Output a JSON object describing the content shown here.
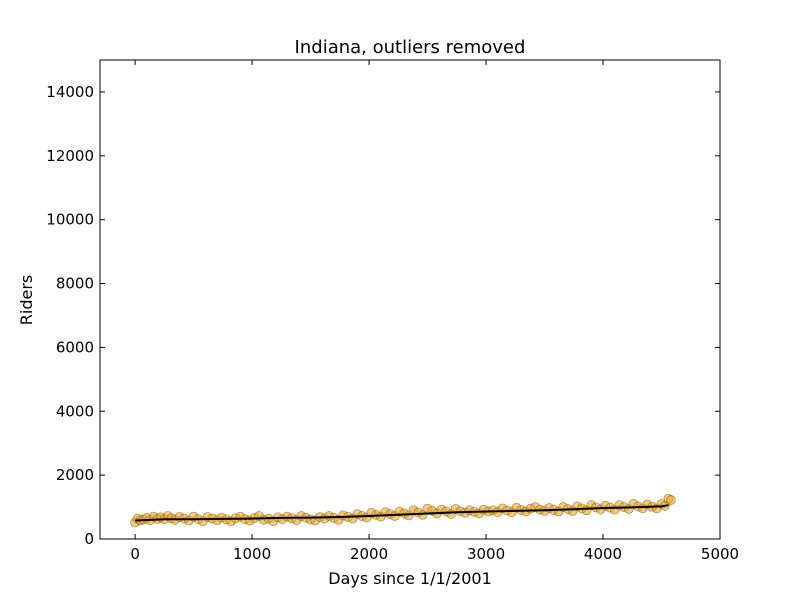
{
  "chart_data": {
    "type": "scatter",
    "title": "Indiana, outliers removed",
    "xlabel": "Days since 1/1/2001",
    "ylabel": "Riders",
    "xlim": [
      -300,
      5000
    ],
    "ylim": [
      0,
      15000
    ],
    "xticks": [
      0,
      1000,
      2000,
      3000,
      4000,
      5000
    ],
    "yticks": [
      0,
      2000,
      4000,
      6000,
      8000,
      10000,
      12000,
      14000
    ],
    "xtick_labels": [
      "0",
      "1000",
      "2000",
      "3000",
      "4000",
      "5000"
    ],
    "ytick_labels": [
      "0",
      "2000",
      "4000",
      "6000",
      "8000",
      "10000",
      "12000",
      "14000"
    ],
    "grid": false,
    "colors": {
      "points_fill": "#e8a020",
      "points_edge": "#8a5a00",
      "trend": "#000000"
    },
    "series": [
      {
        "kind": "points",
        "x": [
          0,
          20,
          45,
          70,
          100,
          130,
          160,
          190,
          220,
          250,
          280,
          310,
          340,
          380,
          420,
          460,
          500,
          540,
          580,
          620,
          660,
          700,
          740,
          780,
          820,
          860,
          900,
          940,
          980,
          1020,
          1060,
          1100,
          1140,
          1180,
          1220,
          1260,
          1300,
          1340,
          1380,
          1420,
          1460,
          1500,
          1540,
          1580,
          1620,
          1660,
          1700,
          1740,
          1780,
          1820,
          1860,
          1900,
          1940,
          1980,
          2020,
          2060,
          2100,
          2140,
          2180,
          2220,
          2260,
          2300,
          2340,
          2380,
          2420,
          2460,
          2500,
          2540,
          2580,
          2620,
          2660,
          2700,
          2740,
          2780,
          2820,
          2860,
          2900,
          2940,
          2980,
          3020,
          3060,
          3100,
          3140,
          3180,
          3220,
          3260,
          3300,
          3340,
          3380,
          3420,
          3460,
          3500,
          3540,
          3580,
          3620,
          3660,
          3700,
          3740,
          3780,
          3820,
          3860,
          3900,
          3940,
          3980,
          4020,
          4060,
          4100,
          4140,
          4180,
          4220,
          4260,
          4300,
          4340,
          4380,
          4420,
          4460,
          4500,
          4530,
          4560,
          4580
        ],
        "y": [
          520,
          640,
          580,
          610,
          660,
          590,
          700,
          630,
          680,
          620,
          720,
          650,
          600,
          690,
          640,
          580,
          700,
          620,
          560,
          690,
          640,
          590,
          670,
          610,
          560,
          650,
          700,
          620,
          580,
          660,
          720,
          600,
          640,
          560,
          680,
          620,
          700,
          650,
          590,
          720,
          670,
          610,
          580,
          690,
          640,
          720,
          660,
          600,
          740,
          690,
          640,
          780,
          720,
          670,
          820,
          760,
          700,
          840,
          780,
          720,
          860,
          800,
          740,
          900,
          830,
          760,
          950,
          880,
          800,
          920,
          860,
          780,
          940,
          870,
          820,
          900,
          850,
          800,
          920,
          860,
          900,
          840,
          960,
          890,
          840,
          980,
          910,
          860,
          950,
          1000,
          920,
          880,
          970,
          910,
          860,
          1000,
          940,
          880,
          1020,
          960,
          900,
          1060,
          990,
          930,
          1040,
          980,
          920,
          1060,
          1000,
          940,
          1100,
          1020,
          960,
          1080,
          1010,
          960,
          1100,
          1040,
          1260,
          1220
        ]
      },
      {
        "kind": "trend",
        "x": [
          0,
          250,
          500,
          750,
          1000,
          1250,
          1500,
          1750,
          2000,
          2250,
          2500,
          2750,
          3000,
          3250,
          3500,
          3750,
          4000,
          4250,
          4500,
          4560
        ],
        "y": [
          580,
          620,
          620,
          630,
          640,
          660,
          670,
          690,
          720,
          760,
          800,
          840,
          860,
          880,
          900,
          930,
          970,
          990,
          1020,
          1060
        ]
      }
    ]
  }
}
